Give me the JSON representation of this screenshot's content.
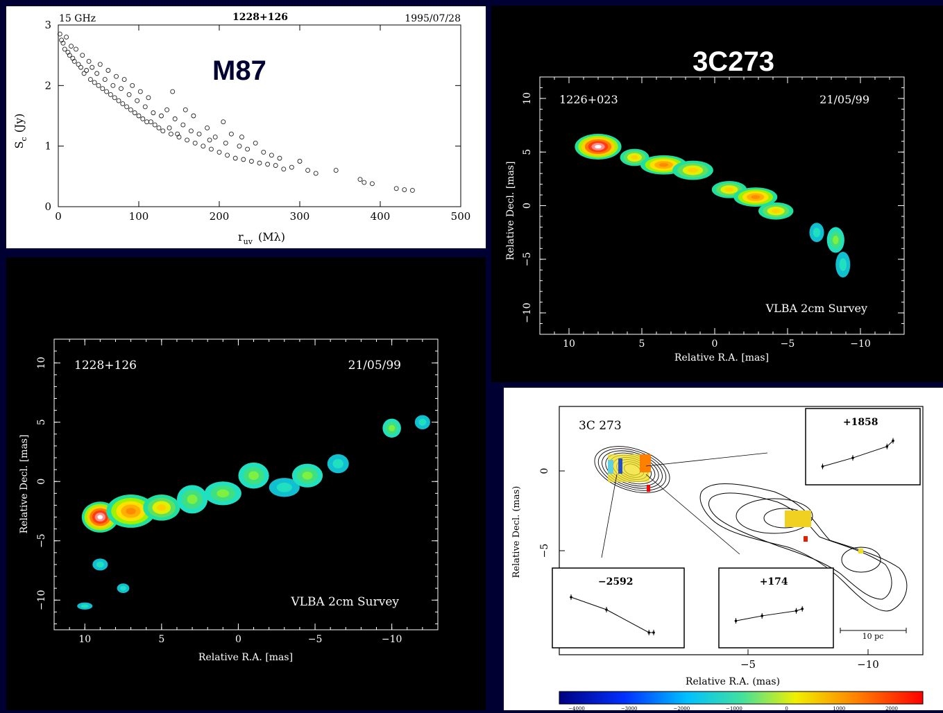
{
  "chart_data": [
    {
      "type": "scatter",
      "header_left": "15 GHz",
      "header_center": "1228+126",
      "header_right": "1995/07/28",
      "label": "M87",
      "xlabel": "r",
      "xlabel_sub": "uv",
      "xlabel_unit": "(Mλ)",
      "ylabel": "S",
      "ylabel_sub": "c",
      "ylabel_unit": "(Jy)",
      "xlim": [
        0,
        500
      ],
      "ylim": [
        0,
        3
      ],
      "xticks": [
        "0",
        "100",
        "200",
        "300",
        "400",
        "500"
      ],
      "yticks": [
        "0",
        "1",
        "2",
        "3"
      ],
      "points": [
        [
          2,
          2.85
        ],
        [
          4,
          2.75
        ],
        [
          6,
          2.7
        ],
        [
          8,
          2.6
        ],
        [
          10,
          2.8
        ],
        [
          12,
          2.55
        ],
        [
          14,
          2.5
        ],
        [
          16,
          2.65
        ],
        [
          18,
          2.45
        ],
        [
          20,
          2.4
        ],
        [
          22,
          2.6
        ],
        [
          25,
          2.35
        ],
        [
          28,
          2.3
        ],
        [
          30,
          2.5
        ],
        [
          32,
          2.2
        ],
        [
          35,
          2.25
        ],
        [
          38,
          2.4
        ],
        [
          40,
          2.1
        ],
        [
          42,
          2.3
        ],
        [
          45,
          2.05
        ],
        [
          48,
          2.2
        ],
        [
          50,
          2.0
        ],
        [
          52,
          2.35
        ],
        [
          55,
          1.95
        ],
        [
          58,
          2.1
        ],
        [
          60,
          1.9
        ],
        [
          62,
          2.25
        ],
        [
          65,
          1.85
        ],
        [
          68,
          2.0
        ],
        [
          70,
          1.8
        ],
        [
          72,
          2.15
        ],
        [
          75,
          1.75
        ],
        [
          78,
          1.95
        ],
        [
          80,
          1.7
        ],
        [
          82,
          2.1
        ],
        [
          85,
          1.65
        ],
        [
          88,
          1.85
        ],
        [
          90,
          1.6
        ],
        [
          92,
          2.0
        ],
        [
          95,
          1.55
        ],
        [
          98,
          1.75
        ],
        [
          100,
          1.5
        ],
        [
          102,
          1.9
        ],
        [
          105,
          1.45
        ],
        [
          108,
          1.65
        ],
        [
          110,
          1.4
        ],
        [
          112,
          1.8
        ],
        [
          115,
          1.4
        ],
        [
          118,
          1.55
        ],
        [
          120,
          1.35
        ],
        [
          125,
          1.3
        ],
        [
          128,
          1.5
        ],
        [
          130,
          1.25
        ],
        [
          135,
          1.6
        ],
        [
          138,
          1.3
        ],
        [
          140,
          1.2
        ],
        [
          142,
          1.9
        ],
        [
          145,
          1.45
        ],
        [
          148,
          1.2
        ],
        [
          150,
          1.15
        ],
        [
          155,
          1.35
        ],
        [
          158,
          1.6
        ],
        [
          160,
          1.1
        ],
        [
          165,
          1.25
        ],
        [
          168,
          1.5
        ],
        [
          170,
          1.05
        ],
        [
          175,
          1.2
        ],
        [
          180,
          1.0
        ],
        [
          185,
          1.3
        ],
        [
          188,
          1.1
        ],
        [
          190,
          0.95
        ],
        [
          195,
          1.15
        ],
        [
          200,
          0.9
        ],
        [
          205,
          1.4
        ],
        [
          208,
          1.05
        ],
        [
          210,
          0.85
        ],
        [
          215,
          1.2
        ],
        [
          220,
          0.8
        ],
        [
          225,
          1.0
        ],
        [
          228,
          1.15
        ],
        [
          230,
          0.78
        ],
        [
          235,
          0.95
        ],
        [
          240,
          0.75
        ],
        [
          245,
          1.05
        ],
        [
          250,
          0.72
        ],
        [
          255,
          0.9
        ],
        [
          260,
          0.7
        ],
        [
          265,
          0.85
        ],
        [
          270,
          0.68
        ],
        [
          275,
          0.8
        ],
        [
          280,
          0.62
        ],
        [
          290,
          0.65
        ],
        [
          300,
          0.75
        ],
        [
          310,
          0.6
        ],
        [
          320,
          0.55
        ],
        [
          345,
          0.6
        ],
        [
          375,
          0.45
        ],
        [
          380,
          0.4
        ],
        [
          390,
          0.38
        ],
        [
          420,
          0.3
        ],
        [
          430,
          0.28
        ],
        [
          440,
          0.27
        ]
      ]
    },
    {
      "type": "heatmap",
      "label": "3C273",
      "source": "1226+023",
      "date": "21/05/99",
      "caption": "VLBA 2cm Survey",
      "xlabel": "Relative R.A. [mas]",
      "ylabel": "Relative Decl. [mas]",
      "xlim": [
        12,
        -13
      ],
      "ylim": [
        -12,
        12
      ],
      "xticks": [
        "10",
        "5",
        "0",
        "−5",
        "−10"
      ],
      "yticks": [
        "10",
        "5",
        "0",
        "−5",
        "−10"
      ],
      "components": [
        [
          8,
          5.5,
          1.6,
          1.2,
          "core"
        ],
        [
          5.5,
          4.5,
          1.0,
          0.8,
          "yellow"
        ],
        [
          3.5,
          3.8,
          1.6,
          0.9,
          "orange"
        ],
        [
          1.5,
          3.3,
          1.4,
          0.9,
          "yellow"
        ],
        [
          -1,
          1.5,
          1.2,
          0.8,
          "yellow"
        ],
        [
          -2.8,
          0.8,
          1.5,
          0.9,
          "orange"
        ],
        [
          -4.2,
          -0.5,
          1.2,
          0.8,
          "yellow"
        ],
        [
          -7,
          -2.5,
          0.5,
          0.9,
          "cyan"
        ],
        [
          -8.3,
          -3.2,
          0.6,
          1.2,
          "green"
        ],
        [
          -8.8,
          -5.5,
          0.5,
          1.2,
          "cyan"
        ]
      ]
    },
    {
      "type": "heatmap",
      "source": "1228+126",
      "date": "21/05/99",
      "caption": "VLBA 2cm Survey",
      "xlabel": "Relative R.A. [mas]",
      "ylabel": "Relative Decl. [mas]",
      "xlim": [
        12,
        -13
      ],
      "ylim": [
        -12.5,
        12
      ],
      "xticks": [
        "10",
        "5",
        "0",
        "−5",
        "−10"
      ],
      "yticks": [
        "10",
        "5",
        "0",
        "−5",
        "−10"
      ],
      "components": [
        [
          9,
          -3,
          1.2,
          1.3,
          "core"
        ],
        [
          7,
          -2.5,
          1.6,
          1.4,
          "orange"
        ],
        [
          5,
          -2.2,
          1.2,
          1.1,
          "yellow"
        ],
        [
          3,
          -1.5,
          1.0,
          1.2,
          "green"
        ],
        [
          1,
          -1.0,
          1.2,
          1.0,
          "green"
        ],
        [
          -1,
          0.5,
          1.0,
          1.1,
          "green"
        ],
        [
          -3,
          -0.5,
          1.0,
          0.8,
          "cyan"
        ],
        [
          -4.5,
          0.5,
          1.0,
          1.0,
          "green"
        ],
        [
          -6.5,
          1.5,
          0.7,
          0.8,
          "cyan"
        ],
        [
          -10,
          4.5,
          0.6,
          0.8,
          "green"
        ],
        [
          -12,
          5,
          0.5,
          0.6,
          "cyan"
        ],
        [
          9,
          -7,
          0.5,
          0.5,
          "cyan"
        ],
        [
          7.5,
          -9,
          0.4,
          0.4,
          "cyan"
        ],
        [
          10,
          -10.5,
          0.5,
          0.3,
          "cyan"
        ]
      ]
    },
    {
      "type": "heatmap",
      "title": "3C 273",
      "xlabel": "Relative R.A. (mas)",
      "ylabel": "Relative Decl. (mas)",
      "xticks": [
        "−5",
        "−10"
      ],
      "yticks": [
        "0",
        "−5"
      ],
      "scale_bar": "10 pc",
      "colorbar_ticks": [
        "−4000",
        "−3000",
        "−2000",
        "−1000",
        "0",
        "1000",
        "2000"
      ],
      "insets": [
        {
          "value": "+1858",
          "points": [
            [
              0.5,
              25
            ],
            [
              2.0,
              40
            ],
            [
              3.7,
              60
            ],
            [
              4.0,
              70
            ]
          ]
        },
        {
          "value": "−2592",
          "points": [
            [
              0.5,
              -60
            ],
            [
              2.0,
              -90
            ],
            [
              3.8,
              -145
            ],
            [
              4.0,
              -145
            ]
          ]
        },
        {
          "value": "+174",
          "points": [
            [
              0.5,
              -15
            ],
            [
              1.8,
              -10
            ],
            [
              3.5,
              -5
            ],
            [
              3.8,
              -3
            ]
          ]
        }
      ]
    }
  ]
}
